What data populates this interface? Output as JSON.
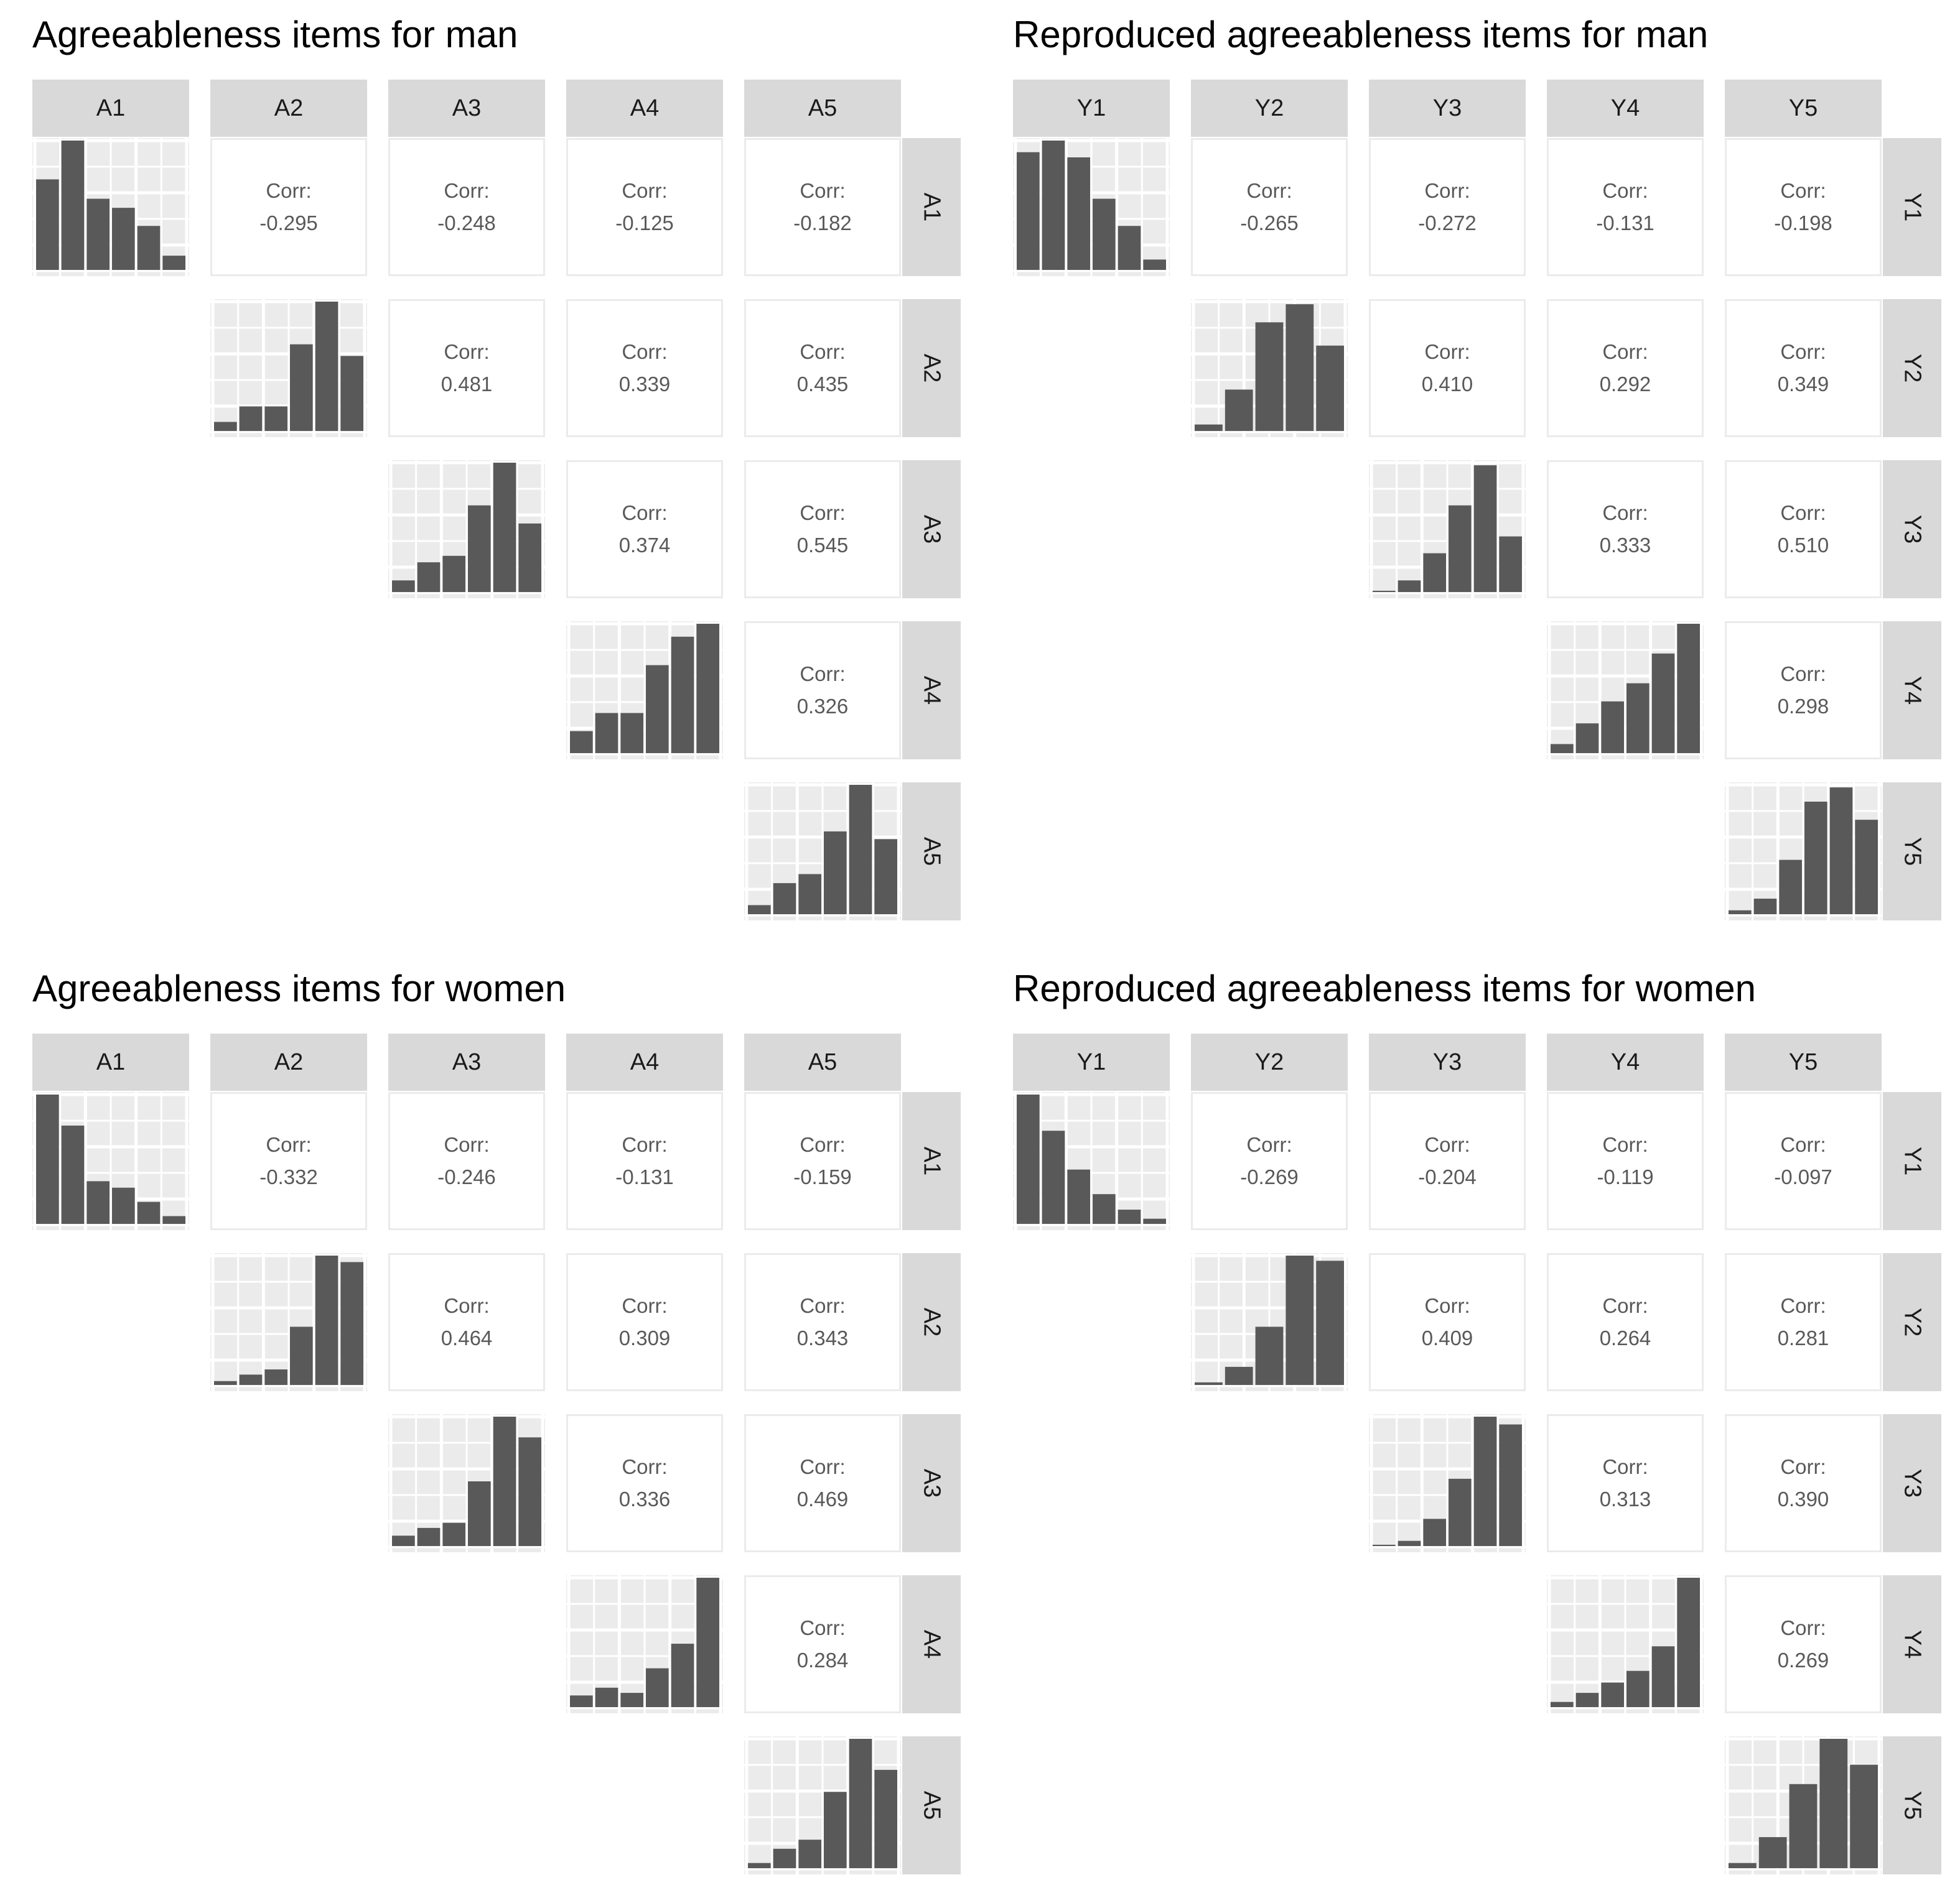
{
  "chart_data": [
    {
      "type": "bar",
      "title": "Agreeableness items for man",
      "variables": [
        "A1",
        "A2",
        "A3",
        "A4",
        "A5"
      ],
      "correlations": [
        {
          "row": "A1",
          "col": "A2",
          "label": "Corr:",
          "value": "-0.295"
        },
        {
          "row": "A1",
          "col": "A3",
          "label": "Corr:",
          "value": "-0.248"
        },
        {
          "row": "A1",
          "col": "A4",
          "label": "Corr:",
          "value": "-0.125"
        },
        {
          "row": "A1",
          "col": "A5",
          "label": "Corr:",
          "value": "-0.182"
        },
        {
          "row": "A2",
          "col": "A3",
          "label": "Corr:",
          "value": "0.481"
        },
        {
          "row": "A2",
          "col": "A4",
          "label": "Corr:",
          "value": "0.339"
        },
        {
          "row": "A2",
          "col": "A5",
          "label": "Corr:",
          "value": "0.435"
        },
        {
          "row": "A3",
          "col": "A4",
          "label": "Corr:",
          "value": "0.374"
        },
        {
          "row": "A3",
          "col": "A5",
          "label": "Corr:",
          "value": "0.545"
        },
        {
          "row": "A4",
          "col": "A5",
          "label": "Corr:",
          "value": "0.326"
        }
      ],
      "histograms": [
        {
          "name": "A1",
          "values": [
            0.7,
            1.0,
            0.55,
            0.48,
            0.34,
            0.11
          ]
        },
        {
          "name": "A2",
          "values": [
            0.07,
            0.19,
            0.19,
            0.67,
            1.0,
            0.58
          ]
        },
        {
          "name": "A3",
          "values": [
            0.09,
            0.23,
            0.28,
            0.67,
            1.0,
            0.53
          ]
        },
        {
          "name": "A4",
          "values": [
            0.17,
            0.31,
            0.31,
            0.68,
            0.9,
            1.0
          ]
        },
        {
          "name": "A5",
          "values": [
            0.07,
            0.24,
            0.31,
            0.64,
            1.0,
            0.58
          ]
        }
      ]
    },
    {
      "type": "bar",
      "title": "Reproduced agreeableness items for man",
      "variables": [
        "Y1",
        "Y2",
        "Y3",
        "Y4",
        "Y5"
      ],
      "correlations": [
        {
          "row": "Y1",
          "col": "Y2",
          "label": "Corr:",
          "value": "-0.265"
        },
        {
          "row": "Y1",
          "col": "Y3",
          "label": "Corr:",
          "value": "-0.272"
        },
        {
          "row": "Y1",
          "col": "Y4",
          "label": "Corr:",
          "value": "-0.131"
        },
        {
          "row": "Y1",
          "col": "Y5",
          "label": "Corr:",
          "value": "-0.198"
        },
        {
          "row": "Y2",
          "col": "Y3",
          "label": "Corr:",
          "value": "0.410"
        },
        {
          "row": "Y2",
          "col": "Y4",
          "label": "Corr:",
          "value": "0.292"
        },
        {
          "row": "Y2",
          "col": "Y5",
          "label": "Corr:",
          "value": "0.349"
        },
        {
          "row": "Y3",
          "col": "Y4",
          "label": "Corr:",
          "value": "0.333"
        },
        {
          "row": "Y3",
          "col": "Y5",
          "label": "Corr:",
          "value": "0.510"
        },
        {
          "row": "Y4",
          "col": "Y5",
          "label": "Corr:",
          "value": "0.298"
        }
      ],
      "histograms": [
        {
          "name": "Y1",
          "values": [
            0.91,
            1.0,
            0.87,
            0.55,
            0.34,
            0.08
          ]
        },
        {
          "name": "Y2",
          "values": [
            0.05,
            0.32,
            0.84,
            0.98,
            0.66
          ]
        },
        {
          "name": "Y3",
          "values": [
            0.01,
            0.09,
            0.3,
            0.67,
            0.98,
            0.43
          ]
        },
        {
          "name": "Y4",
          "values": [
            0.07,
            0.23,
            0.4,
            0.54,
            0.77,
            1.0
          ]
        },
        {
          "name": "Y5",
          "values": [
            0.03,
            0.12,
            0.42,
            0.87,
            0.98,
            0.73
          ]
        }
      ]
    },
    {
      "type": "bar",
      "title": "Agreeableness items for women",
      "variables": [
        "A1",
        "A2",
        "A3",
        "A4",
        "A5"
      ],
      "correlations": [
        {
          "row": "A1",
          "col": "A2",
          "label": "Corr:",
          "value": "-0.332"
        },
        {
          "row": "A1",
          "col": "A3",
          "label": "Corr:",
          "value": "-0.246"
        },
        {
          "row": "A1",
          "col": "A4",
          "label": "Corr:",
          "value": "-0.131"
        },
        {
          "row": "A1",
          "col": "A5",
          "label": "Corr:",
          "value": "-0.159"
        },
        {
          "row": "A2",
          "col": "A3",
          "label": "Corr:",
          "value": "0.464"
        },
        {
          "row": "A2",
          "col": "A4",
          "label": "Corr:",
          "value": "0.309"
        },
        {
          "row": "A2",
          "col": "A5",
          "label": "Corr:",
          "value": "0.343"
        },
        {
          "row": "A3",
          "col": "A4",
          "label": "Corr:",
          "value": "0.336"
        },
        {
          "row": "A3",
          "col": "A5",
          "label": "Corr:",
          "value": "0.469"
        },
        {
          "row": "A4",
          "col": "A5",
          "label": "Corr:",
          "value": "0.284"
        }
      ],
      "histograms": [
        {
          "name": "A1",
          "values": [
            1.0,
            0.76,
            0.33,
            0.28,
            0.17,
            0.06
          ]
        },
        {
          "name": "A2",
          "values": [
            0.03,
            0.08,
            0.12,
            0.45,
            1.0,
            0.95
          ]
        },
        {
          "name": "A3",
          "values": [
            0.08,
            0.14,
            0.18,
            0.5,
            1.0,
            0.84
          ]
        },
        {
          "name": "A4",
          "values": [
            0.09,
            0.15,
            0.11,
            0.3,
            0.49,
            1.0
          ]
        },
        {
          "name": "A5",
          "values": [
            0.04,
            0.15,
            0.22,
            0.59,
            1.0,
            0.76
          ]
        }
      ]
    },
    {
      "type": "bar",
      "title": "Reproduced agreeableness items for women",
      "variables": [
        "Y1",
        "Y2",
        "Y3",
        "Y4",
        "Y5"
      ],
      "correlations": [
        {
          "row": "Y1",
          "col": "Y2",
          "label": "Corr:",
          "value": "-0.269"
        },
        {
          "row": "Y1",
          "col": "Y3",
          "label": "Corr:",
          "value": "-0.204"
        },
        {
          "row": "Y1",
          "col": "Y4",
          "label": "Corr:",
          "value": "-0.119"
        },
        {
          "row": "Y1",
          "col": "Y5",
          "label": "Corr:",
          "value": "-0.097"
        },
        {
          "row": "Y2",
          "col": "Y3",
          "label": "Corr:",
          "value": "0.409"
        },
        {
          "row": "Y2",
          "col": "Y4",
          "label": "Corr:",
          "value": "0.264"
        },
        {
          "row": "Y2",
          "col": "Y5",
          "label": "Corr:",
          "value": "0.281"
        },
        {
          "row": "Y3",
          "col": "Y4",
          "label": "Corr:",
          "value": "0.313"
        },
        {
          "row": "Y3",
          "col": "Y5",
          "label": "Corr:",
          "value": "0.390"
        },
        {
          "row": "Y4",
          "col": "Y5",
          "label": "Corr:",
          "value": "0.269"
        }
      ],
      "histograms": [
        {
          "name": "Y1",
          "values": [
            1.0,
            0.72,
            0.42,
            0.23,
            0.11,
            0.04
          ]
        },
        {
          "name": "Y2",
          "values": [
            0.02,
            0.14,
            0.45,
            1.0,
            0.96
          ]
        },
        {
          "name": "Y3",
          "values": [
            0.01,
            0.04,
            0.21,
            0.52,
            1.0,
            0.94
          ]
        },
        {
          "name": "Y4",
          "values": [
            0.04,
            0.11,
            0.19,
            0.28,
            0.47,
            1.0
          ]
        },
        {
          "name": "Y5",
          "values": [
            0.04,
            0.24,
            0.65,
            1.0,
            0.8
          ]
        }
      ]
    }
  ],
  "colors": {
    "bar": "#595959",
    "panel_bg": "#ebebeb",
    "grid": "#ffffff",
    "strip": "#d9d9d9",
    "corr_text": "#595959"
  }
}
